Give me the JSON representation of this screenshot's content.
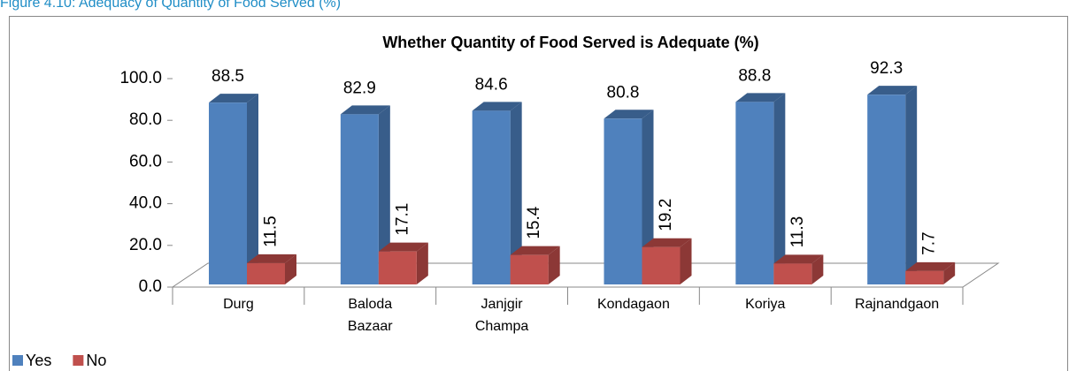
{
  "chart_data": {
    "type": "bar3d",
    "caption": "Figure 4.10: Adequacy of Quantity of Food Served (%)",
    "title": "Whether Quantity of Food Served is Adequate (%)",
    "categories": [
      "Durg",
      "Baloda Bazaar",
      "Janjgir Champa",
      "Kondagaon",
      "Koriya",
      "Rajnandgaon"
    ],
    "series": [
      {
        "name": "Yes",
        "color": "#4f81bd",
        "side": "#385d8a",
        "values": [
          88.5,
          82.9,
          84.6,
          80.8,
          88.8,
          92.3
        ]
      },
      {
        "name": "No",
        "color": "#c0504d",
        "side": "#8c3836",
        "values": [
          11.5,
          17.1,
          15.4,
          19.2,
          11.3,
          7.7
        ]
      }
    ],
    "ylim": [
      0,
      100
    ],
    "yticks": [
      {
        "value": 0,
        "label": "0.0"
      },
      {
        "value": 20,
        "label": "20.0"
      },
      {
        "value": 40,
        "label": "40.0"
      },
      {
        "value": 60,
        "label": "60.0"
      },
      {
        "value": 80,
        "label": "80.0"
      },
      {
        "value": 100,
        "label": "100.0"
      }
    ],
    "legend": "bottom-left"
  }
}
